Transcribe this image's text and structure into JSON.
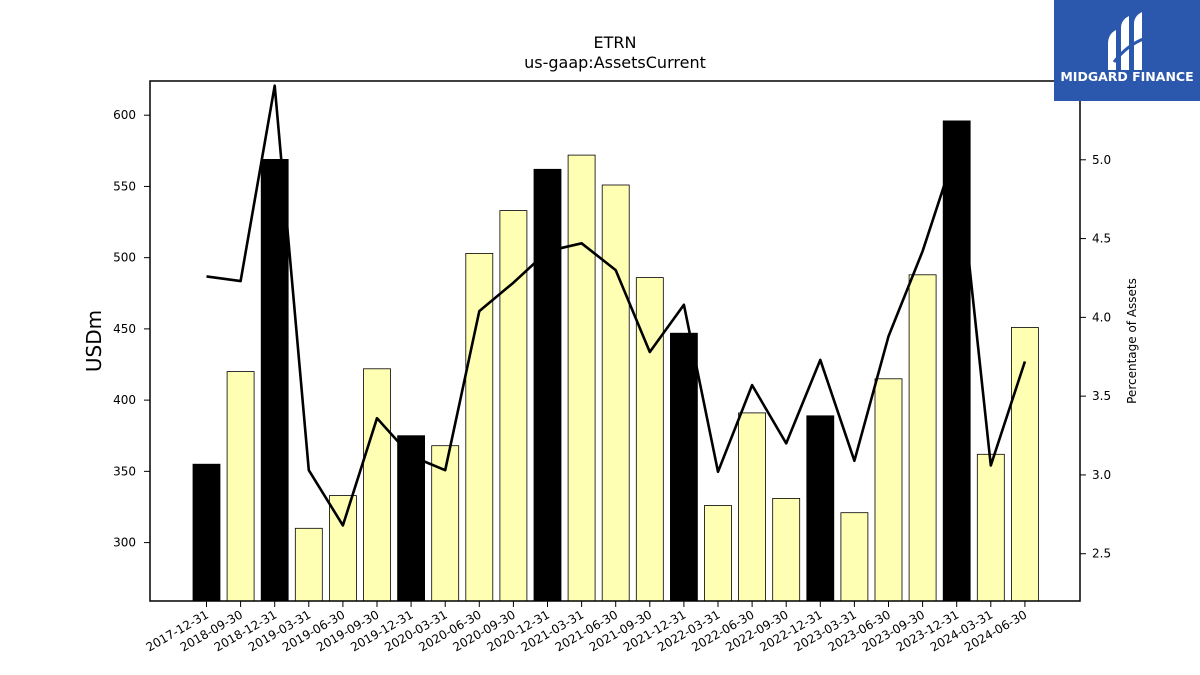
{
  "brand": {
    "logo_text": "MIDGARD FINANCE",
    "logo_bg": "#2b58ad"
  },
  "chart_data": {
    "type": "bar",
    "title": "ETRN",
    "subtitle": "us-gaap:AssetsCurrent",
    "ylabel": "USDm",
    "ylabel_right": "Percentage of Assets",
    "ylim": [
      259,
      624
    ],
    "ylim_right": [
      2.2,
      5.5
    ],
    "yticks": [
      300,
      350,
      400,
      450,
      500,
      550,
      600
    ],
    "yticks_right": [
      2.5,
      3.0,
      3.5,
      4.0,
      4.5,
      5.0
    ],
    "yticks_right_labels": [
      "2.5",
      "3.0",
      "3.5",
      "4.0",
      "4.5",
      "5.0"
    ],
    "categories": [
      "2017-12-31",
      "2018-09-30",
      "2018-12-31",
      "2019-03-31",
      "2019-06-30",
      "2019-09-30",
      "2019-12-31",
      "2020-03-31",
      "2020-06-30",
      "2020-09-30",
      "2020-12-31",
      "2021-03-31",
      "2021-06-30",
      "2021-09-30",
      "2021-12-31",
      "2022-03-31",
      "2022-06-30",
      "2022-09-30",
      "2022-12-31",
      "2023-03-31",
      "2023-06-30",
      "2023-09-30",
      "2023-12-31",
      "2024-03-31",
      "2024-06-30"
    ],
    "series": [
      {
        "type": "bar",
        "values": [
          355,
          420,
          569,
          310,
          333,
          422,
          375,
          368,
          503,
          533,
          562,
          572,
          551,
          486,
          447,
          326,
          391,
          331,
          389,
          321,
          415,
          488,
          596,
          362,
          451
        ],
        "annual_flags": [
          true,
          false,
          true,
          false,
          false,
          false,
          true,
          false,
          false,
          false,
          true,
          false,
          false,
          false,
          true,
          false,
          false,
          false,
          true,
          false,
          false,
          false,
          true,
          false,
          false
        ],
        "color_annual": "#000000",
        "color_quarterly": "#ffffb3"
      },
      {
        "type": "line",
        "axis": "right",
        "values": [
          4.26,
          4.23,
          5.47,
          3.03,
          2.68,
          3.36,
          3.12,
          3.03,
          4.04,
          4.22,
          4.42,
          4.47,
          4.3,
          3.78,
          4.08,
          3.02,
          3.57,
          3.2,
          3.73,
          3.09,
          3.88,
          4.42,
          5.08,
          3.06,
          3.72
        ],
        "color": "#000000"
      }
    ],
    "grid": false,
    "legend": "none"
  }
}
